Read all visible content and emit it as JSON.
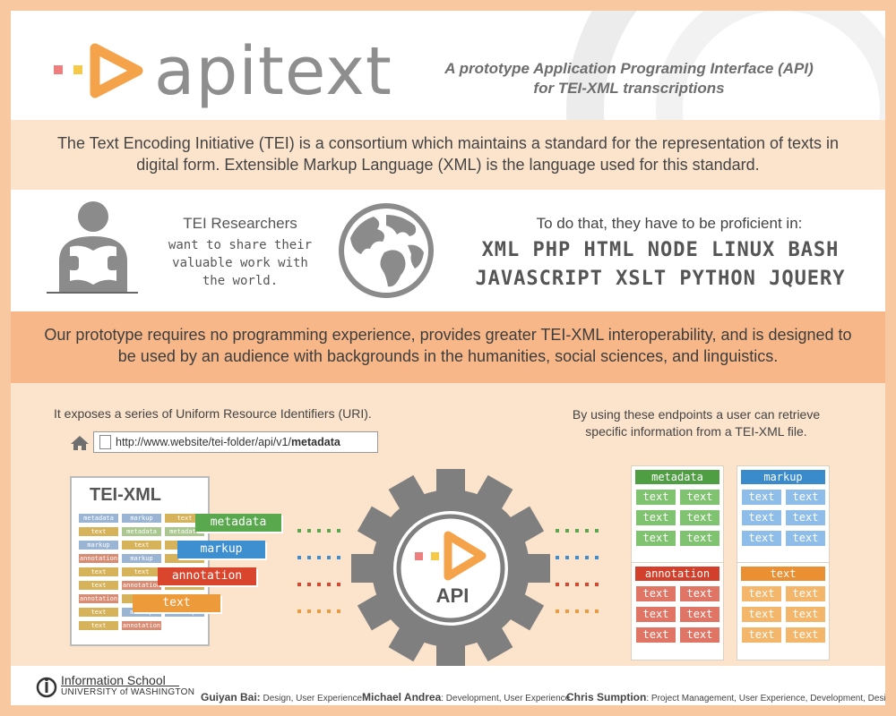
{
  "header": {
    "logo_text": "apitext",
    "tagline_line1": "A prototype Application Programing Interface (API)",
    "tagline_line2": "for TEI-XML transcriptions"
  },
  "intro": {
    "text": "The Text Encoding Initiative (TEI) is a consortium which maintains a standard for the representation of texts in digital form. Extensible Markup Language (XML) is the language used for this standard."
  },
  "researchers": {
    "title": "TEI Researchers",
    "subtitle_line1": "want to share their",
    "subtitle_line2": "valuable work with",
    "subtitle_line3": "the world.",
    "proficient_label": "To do that, they have to be proficient in:",
    "languages_line1": "XML PHP HTML NODE LINUX BASH",
    "languages_line2": "JAVASCRIPT XSLT PYTHON JQUERY"
  },
  "prototype": {
    "text": "Our prototype requires no programming experience, provides greater TEI-XML interoperability, and is designed to be used by an audience with backgrounds in the humanities, social sciences, and linguistics."
  },
  "uri": {
    "text": "It exposes a series of Uniform Resource Identifiers (URI).",
    "url_prefix": "http://www.website/tei-folder/api/v1/",
    "url_endpoint": "metadata"
  },
  "endpoints_text_line1": "By using these endpoints a user can retrieve",
  "endpoints_text_line2": "specific information from a TEI-XML file.",
  "tei_file": {
    "title": "TEI-XML",
    "mini_labels": [
      "metadata",
      "markup",
      "text",
      "text",
      "metadata",
      "metadata",
      "markup",
      "text",
      "text",
      "annotation",
      "markup",
      "text",
      "text",
      "text",
      "markup",
      "text",
      "annotation",
      "text",
      "annotation",
      "text",
      "text",
      "text",
      "markup",
      "markup",
      "text",
      "annotation"
    ]
  },
  "tags": [
    {
      "label": "metadata",
      "color": "#5aa84e"
    },
    {
      "label": "markup",
      "color": "#3d8fd0"
    },
    {
      "label": "annotation",
      "color": "#d9452d"
    },
    {
      "label": "text",
      "color": "#ec9a3a"
    }
  ],
  "gear_label": "API",
  "endpoint_boxes": [
    {
      "head": "metadata",
      "head_color": "#4f9e43",
      "cell_color": "#7fc26f",
      "cell": "text"
    },
    {
      "head": "markup",
      "head_color": "#3a8bcc",
      "cell_color": "#8dbde8",
      "cell": "text"
    },
    {
      "head": "annotation",
      "head_color": "#d2402b",
      "cell_color": "#e07565",
      "cell": "text"
    },
    {
      "head": "text",
      "head_color": "#ea9032",
      "cell_color": "#f4b66a",
      "cell": "text"
    }
  ],
  "footer": {
    "school": "Information School",
    "university": "UNIVERSITY of WASHINGTON",
    "credits": [
      {
        "name": "Guiyan Bai:",
        "role": "Design, User Experience"
      },
      {
        "name": "Michael Andrea",
        "role": ": Development, User Experience"
      },
      {
        "name": "Chris Sumption",
        "role": ": Project Management, User Experience, Development, Design"
      }
    ]
  },
  "colors": {
    "orange_logo": "#f5a34a",
    "gear": "#7f7f7f"
  }
}
